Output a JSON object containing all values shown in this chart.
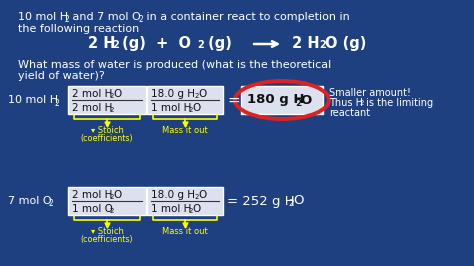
{
  "bg_color": "#1f4080",
  "text_color": "#ffffff",
  "yellow_color": "#ffff00",
  "box_bg": "#dde0ee",
  "box_edge": "#ffffff",
  "red_color": "#dd2222",
  "black": "#111111",
  "line1a": "10 mol H",
  "line1a_sub": "2",
  "line1b": " and 7 mol O",
  "line1b_sub": "2",
  "line1c": " in a container react to completion in",
  "line2": "the following reaction",
  "rx_left": "2 H",
  "rx_left_sub": "2",
  "rx_mid": " (g)  +  O",
  "rx_mid_sub": "2",
  "rx_mid2": " (g)  ",
  "rx_right": "2 H",
  "rx_right_sub": "2",
  "rx_right2": "O (g)",
  "q1": "What mass of water is produced (what is the theoretical",
  "q2": "yield of water)?",
  "r1_label": "10 mol H",
  "r1_label_sub": "2",
  "b1_num1": "2 mol H",
  "b1_num_sub": "2",
  "b1_num2": "O",
  "b1_den1": "2 mol H",
  "b1_den_sub": "2",
  "b2_num1": "18.0 g H",
  "b2_num_sub": "2",
  "b2_num2": "O",
  "b2_den1": "1 mol H",
  "b2_den_sub": "2",
  "b2_den2": "O",
  "res1_text": "180 g H",
  "res1_sub": "2",
  "res1_end": "O",
  "ann1": "Smaller amount!",
  "ann2": "Thus H",
  "ann2_sub": "2",
  "ann3": " is the limiting",
  "ann4": "reactant",
  "r2_label": "7 mol O",
  "r2_label_sub": "2",
  "b3_num1": "2 mol H",
  "b3_num_sub": "2",
  "b3_num2": "O",
  "b3_den1": "1 mol O",
  "b3_den_sub": "2",
  "b4_num1": "18.0 g H",
  "b4_num_sub": "2",
  "b4_num2": "O",
  "b4_den1": "1 mol H",
  "b4_den_sub": "2",
  "b4_den2": "O",
  "res2_text": "= 252 g H",
  "res2_sub": "2",
  "res2_end": "O",
  "stoich_label1": "▾ Stoich",
  "stoich_label2": "(coefficients)",
  "mass_label": "Mass it out"
}
